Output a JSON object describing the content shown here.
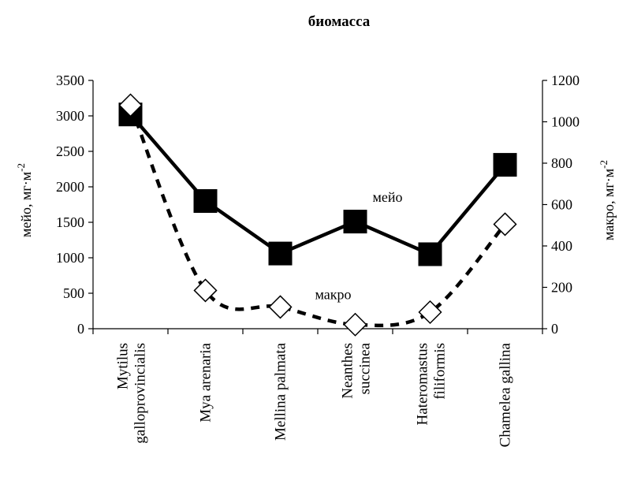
{
  "chart_data": {
    "type": "line",
    "title": "биомасса",
    "categories": [
      "Mytilus\ngalloprovincialis",
      "Mya arenaria",
      "Mellina palmata",
      "Neanthes\nsuccinea",
      "Hateromastus\nfiliformis",
      "Chamelea gallina"
    ],
    "y_left": {
      "label_main": "мейо, мг·м",
      "label_sup": "-2",
      "ticks": [
        "0",
        "500",
        "1000",
        "1500",
        "2000",
        "2500",
        "3000",
        "3500"
      ],
      "lim": [
        0,
        3500
      ]
    },
    "y_right": {
      "label_main": "макро, мг·м",
      "label_sup": "-2",
      "ticks": [
        "0",
        "200",
        "400",
        "600",
        "800",
        "1000",
        "1200"
      ],
      "lim": [
        0,
        1200
      ]
    },
    "series": [
      {
        "name": "мейо",
        "axis": "left",
        "values": [
          3020,
          1800,
          1060,
          1510,
          1050,
          2310
        ],
        "color": "#000000",
        "style": "solid",
        "marker": "filled-square"
      },
      {
        "name": "макро",
        "axis": "right",
        "values": [
          1080,
          185,
          105,
          20,
          80,
          505
        ],
        "color": "#000000",
        "style": "dashed",
        "marker": "open-diamond"
      }
    ]
  }
}
